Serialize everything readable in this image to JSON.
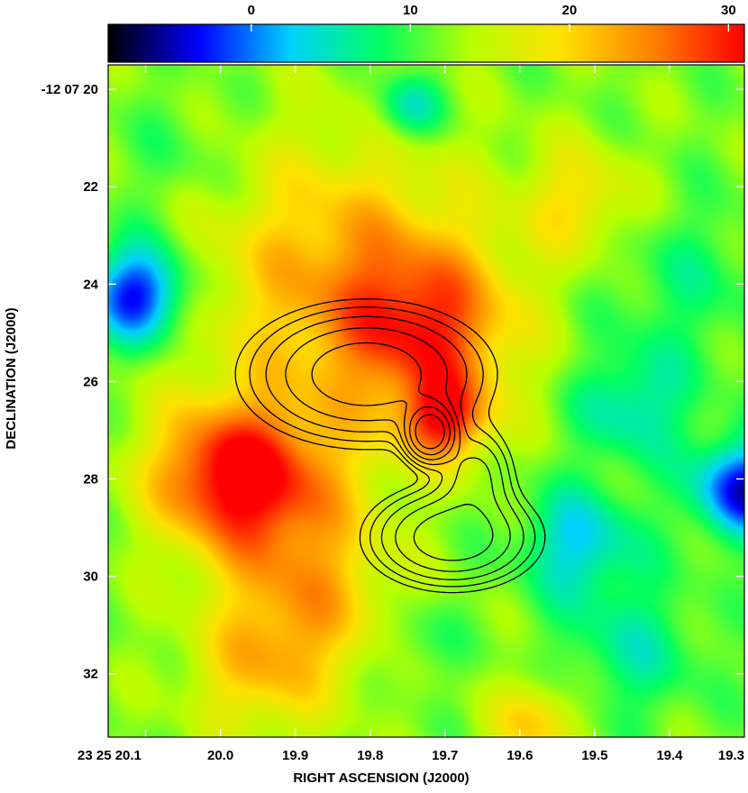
{
  "chart_data": {
    "type": "heatmap",
    "title": "",
    "xlabel": "RIGHT ASCENSION (J2000)",
    "ylabel": "DECLINATION (J2000)",
    "colorbar": {
      "range": [
        -9,
        31
      ],
      "ticks": [
        0,
        10,
        20,
        30
      ],
      "colormap": [
        "#000000",
        "#0000ff",
        "#00d0ff",
        "#00ff60",
        "#b8ff00",
        "#ffe000",
        "#ff8000",
        "#ff0000"
      ]
    },
    "x_axis": {
      "range_seconds": [
        20.15,
        19.3
      ],
      "ticks": [
        {
          "label": "23 25 20.1",
          "value": 20.1
        },
        {
          "label": "20.0",
          "value": 20.0
        },
        {
          "label": "19.9",
          "value": 19.9
        },
        {
          "label": "19.8",
          "value": 19.8
        },
        {
          "label": "19.7",
          "value": 19.7
        },
        {
          "label": "19.6",
          "value": 19.6
        },
        {
          "label": "19.5",
          "value": 19.5
        },
        {
          "label": "19.4",
          "value": 19.4
        },
        {
          "label": "19.3",
          "value": 19.3
        }
      ]
    },
    "y_axis": {
      "range_arcsec": [
        19.5,
        33.3
      ],
      "ticks": [
        {
          "label": "-12 07 20",
          "value": 20
        },
        {
          "label": "22",
          "value": 22
        },
        {
          "label": "24",
          "value": 24
        },
        {
          "label": "26",
          "value": 26
        },
        {
          "label": "28",
          "value": 28
        },
        {
          "label": "30",
          "value": 30
        },
        {
          "label": "32",
          "value": 32
        }
      ]
    },
    "background_sources": [
      {
        "ra": 19.84,
        "dec": 23.8,
        "value": 24,
        "sigma": 2.0
      },
      {
        "ra": 19.72,
        "dec": 25.0,
        "value": 26,
        "sigma": 1.2
      },
      {
        "ra": 19.7,
        "dec": 26.8,
        "value": 28,
        "sigma": 0.6
      },
      {
        "ra": 19.93,
        "dec": 28.1,
        "value": 26,
        "sigma": 1.2
      },
      {
        "ra": 20.01,
        "dec": 27.9,
        "value": 25,
        "sigma": 1.0
      },
      {
        "ra": 19.88,
        "dec": 30.5,
        "value": 22,
        "sigma": 1.2
      },
      {
        "ra": 19.95,
        "dec": 32.0,
        "value": 20,
        "sigma": 1.0
      },
      {
        "ra": 19.52,
        "dec": 22.3,
        "value": 20,
        "sigma": 0.8
      },
      {
        "ra": 19.58,
        "dec": 33.0,
        "value": 22,
        "sigma": 0.6
      },
      {
        "ra": 20.11,
        "dec": 24.2,
        "value": -6,
        "sigma": 0.7
      },
      {
        "ra": 19.3,
        "dec": 28.2,
        "value": -6,
        "sigma": 0.7
      },
      {
        "ra": 19.45,
        "dec": 26.5,
        "value": 4,
        "sigma": 0.8
      },
      {
        "ra": 19.52,
        "dec": 29.3,
        "value": 2,
        "sigma": 0.8
      },
      {
        "ra": 19.75,
        "dec": 20.4,
        "value": 3,
        "sigma": 0.5
      },
      {
        "ra": 19.45,
        "dec": 31.5,
        "value": 6,
        "sigma": 1.0
      },
      {
        "ra": 19.74,
        "dec": 31.3,
        "value": 8,
        "sigma": 0.6
      },
      {
        "ra": 20.05,
        "dec": 21.5,
        "value": 9,
        "sigma": 1.0
      },
      {
        "ra": 19.38,
        "dec": 24.0,
        "value": 8,
        "sigma": 1.2
      }
    ],
    "radio_contours": {
      "levels": 7,
      "components": [
        {
          "ra": 19.805,
          "dec": 25.85,
          "sigma_x": 0.085,
          "sigma_y": 0.75,
          "rotation_deg": -35,
          "peak": 1.0
        },
        {
          "ra": 19.72,
          "dec": 27.05,
          "sigma_x": 0.018,
          "sigma_y": 0.32,
          "rotation_deg": 0,
          "peak": 2.6
        },
        {
          "ra": 19.69,
          "dec": 29.2,
          "sigma_x": 0.06,
          "sigma_y": 0.55,
          "rotation_deg": 0,
          "peak": 1.0
        },
        {
          "ra": 19.66,
          "dec": 27.9,
          "sigma_x": 0.03,
          "sigma_y": 0.55,
          "rotation_deg": 0,
          "peak": 0.5
        }
      ]
    }
  }
}
